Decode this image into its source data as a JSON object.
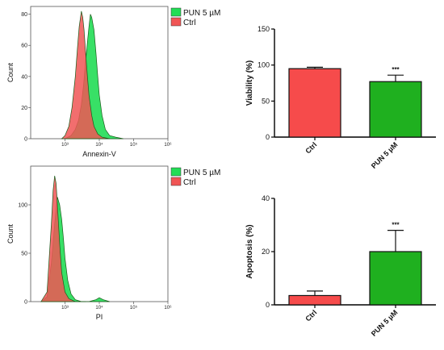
{
  "chart_data": [
    {
      "type": "area",
      "xlabel": "Annexin-V",
      "ylabel": "Count",
      "xscale": "log",
      "xlim": [
        100,
        1000000
      ],
      "ylim": [
        0,
        85
      ],
      "yticks": [
        0,
        20,
        40,
        60,
        80
      ],
      "xtick_labels": [
        "10³",
        "10⁴",
        "10⁵",
        "10⁶"
      ],
      "xtick_values": [
        1000,
        10000,
        100000,
        1000000
      ],
      "legend": [
        "PUN 5 µM",
        "Ctrl"
      ],
      "legend_position": "top-right",
      "series": [
        {
          "name": "PUN 5 µM",
          "color": "#22dd55",
          "x": [
            1000,
            1500,
            2000,
            2500,
            3000,
            3500,
            4000,
            4500,
            5000,
            5500,
            6000,
            7000,
            8000,
            9000,
            10000,
            12000,
            15000,
            20000,
            30000,
            50000
          ],
          "y": [
            0,
            2,
            6,
            12,
            22,
            35,
            50,
            62,
            72,
            80,
            78,
            70,
            55,
            40,
            28,
            15,
            6,
            2,
            1,
            0
          ]
        },
        {
          "name": "Ctrl",
          "color": "#f05555",
          "x": [
            800,
            1000,
            1300,
            1600,
            2000,
            2300,
            2600,
            3000,
            3300,
            3600,
            4000,
            4500,
            5000,
            6000,
            7000,
            9000,
            12000,
            20000
          ],
          "y": [
            0,
            2,
            8,
            20,
            40,
            58,
            72,
            82,
            78,
            70,
            55,
            40,
            28,
            15,
            8,
            3,
            1,
            0
          ]
        }
      ]
    },
    {
      "type": "bar",
      "ylabel": "Viability (%)",
      "categories": [
        "Ctrl",
        "PUN 5 µM"
      ],
      "values": [
        95,
        77
      ],
      "errors": [
        2,
        9
      ],
      "ylim": [
        0,
        150
      ],
      "yticks": [
        0,
        50,
        100,
        150
      ],
      "colors": [
        "#f64b4b",
        "#1fb01f"
      ],
      "annotations": [
        "",
        "***"
      ]
    },
    {
      "type": "area",
      "xlabel": "PI",
      "ylabel": "Count",
      "xscale": "log",
      "xlim": [
        100,
        1000000
      ],
      "ylim": [
        0,
        140
      ],
      "yticks": [
        0,
        50,
        100
      ],
      "xtick_labels": [
        "10³",
        "10⁴",
        "10⁵",
        "10⁶"
      ],
      "xtick_values": [
        1000,
        10000,
        100000,
        1000000
      ],
      "legend": [
        "PUN 5 µM",
        "Ctrl"
      ],
      "legend_position": "top-right",
      "series": [
        {
          "name": "PUN 5 µM",
          "color": "#22dd55",
          "x": [
            200,
            300,
            400,
            500,
            600,
            700,
            800,
            900,
            1000,
            1200,
            1500,
            2000,
            3000,
            5000,
            8000,
            10000,
            13000,
            20000
          ],
          "y": [
            0,
            5,
            40,
            80,
            108,
            100,
            85,
            65,
            45,
            22,
            8,
            2,
            0,
            0,
            2,
            4,
            2,
            0
          ]
        },
        {
          "name": "Ctrl",
          "color": "#f05555",
          "x": [
            200,
            300,
            400,
            450,
            500,
            550,
            600,
            700,
            800,
            1000,
            1300,
            2000,
            4000
          ],
          "y": [
            0,
            10,
            80,
            115,
            130,
            122,
            100,
            60,
            30,
            10,
            3,
            0,
            0
          ]
        }
      ]
    },
    {
      "type": "bar",
      "ylabel": "Apoptosis (%)",
      "categories": [
        "Ctrl",
        "PUN 5 µM"
      ],
      "values": [
        3.5,
        20
      ],
      "errors": [
        1.7,
        8
      ],
      "ylim": [
        0,
        40
      ],
      "yticks": [
        0,
        20,
        40
      ],
      "colors": [
        "#f64b4b",
        "#1fb01f"
      ],
      "annotations": [
        "",
        "***"
      ]
    }
  ]
}
